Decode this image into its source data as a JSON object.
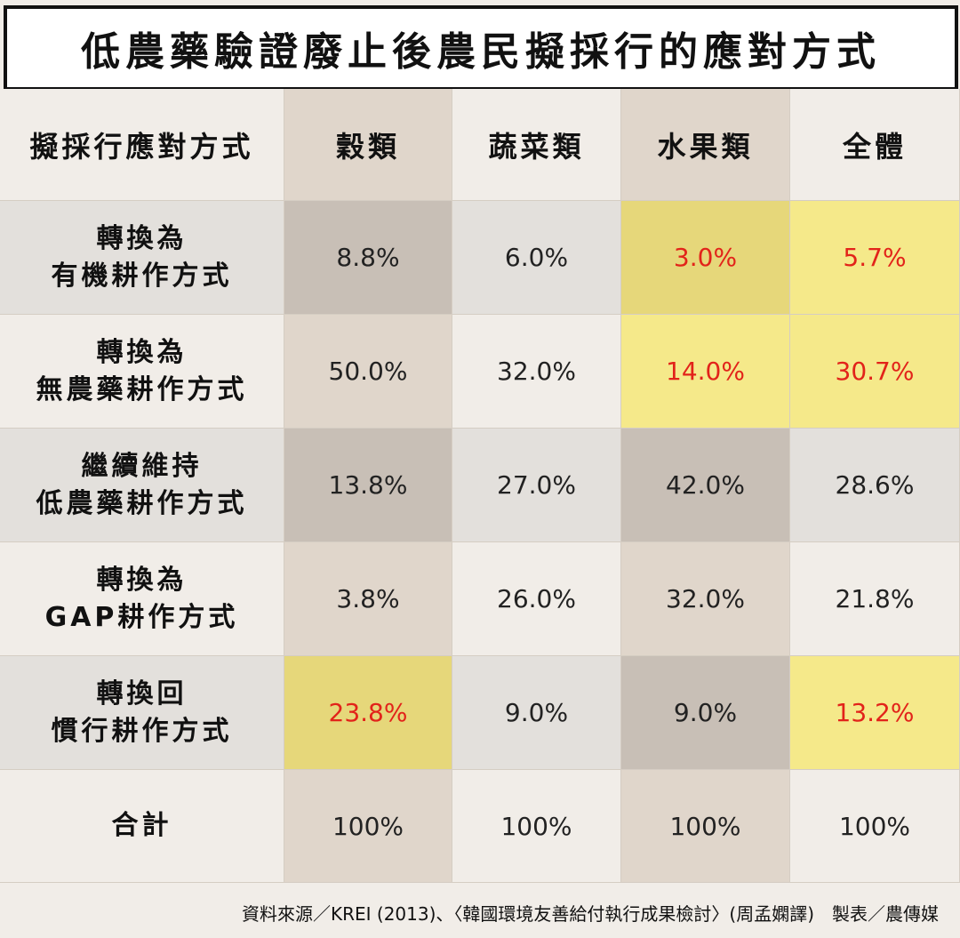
{
  "title": "低農藥驗證廢止後農民擬採行的應對方式",
  "colors": {
    "background": "#f1ede8",
    "highlight_text": "#e2231a",
    "yellow_bright": "#f5e98a",
    "yellow_dark": "#e6d77a",
    "tan": "#e0d6cb",
    "gray_brown": "#c8bfb6"
  },
  "table": {
    "headers": [
      "擬採行應對方式",
      "穀類",
      "蔬菜類",
      "水果類",
      "全體"
    ],
    "rows": [
      {
        "label": "轉換為\n有機耕作方式",
        "values": [
          "8.8%",
          "6.0%",
          "3.0%",
          "5.7%"
        ],
        "highlight": [
          false,
          false,
          true,
          true
        ]
      },
      {
        "label": "轉換為\n無農藥耕作方式",
        "values": [
          "50.0%",
          "32.0%",
          "14.0%",
          "30.7%"
        ],
        "highlight": [
          false,
          false,
          true,
          true
        ]
      },
      {
        "label": "繼續維持\n低農藥耕作方式",
        "values": [
          "13.8%",
          "27.0%",
          "42.0%",
          "28.6%"
        ],
        "highlight": [
          false,
          false,
          false,
          false
        ]
      },
      {
        "label": "轉換為\nGAP耕作方式",
        "values": [
          "3.8%",
          "26.0%",
          "32.0%",
          "21.8%"
        ],
        "highlight": [
          false,
          false,
          false,
          false
        ]
      },
      {
        "label": "轉換回\n慣行耕作方式",
        "values": [
          "23.8%",
          "9.0%",
          "9.0%",
          "13.2%"
        ],
        "highlight": [
          true,
          false,
          false,
          true
        ]
      },
      {
        "label": "合計",
        "values": [
          "100%",
          "100%",
          "100%",
          "100%"
        ],
        "highlight": [
          false,
          false,
          false,
          false
        ]
      }
    ]
  },
  "footer": "資料來源／KREI (2013)、〈韓國環境友善給付執行成果檢討〉(周孟嫻譯)　製表／農傳媒"
}
